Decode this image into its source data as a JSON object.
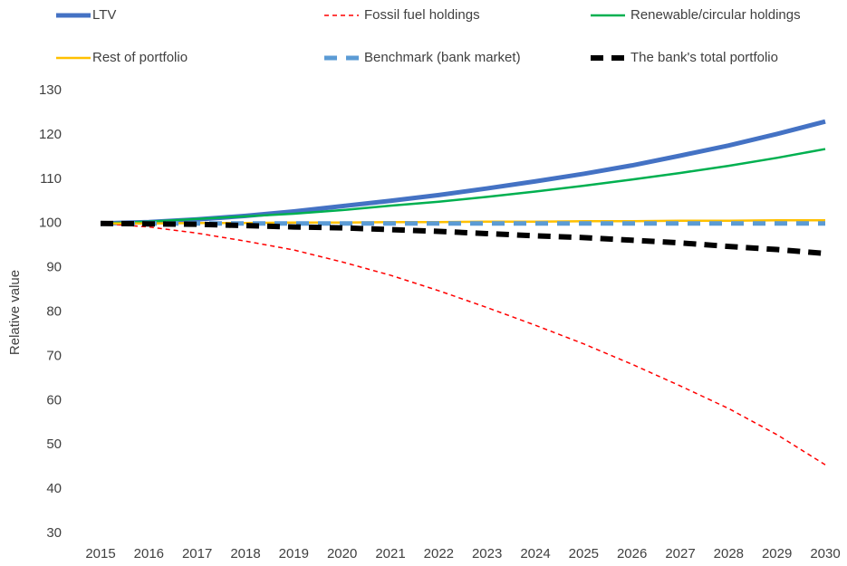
{
  "chart_data": {
    "type": "line",
    "y_label": "Relative value",
    "categories": [
      "2015",
      "2016",
      "2017",
      "2018",
      "2019",
      "2020",
      "2021",
      "2022",
      "2023",
      "2024",
      "2025",
      "2026",
      "2027",
      "2028",
      "2029",
      "2030"
    ],
    "ylim": [
      30,
      130
    ],
    "yticks": [
      30,
      40,
      50,
      60,
      70,
      80,
      90,
      100,
      110,
      120,
      130
    ],
    "grid": false,
    "legend": "top",
    "series": [
      {
        "name": "LTV",
        "color": "#4472c4",
        "width": 5,
        "dash": "none",
        "values": [
          100,
          100.3,
          100.9,
          101.7,
          102.7,
          103.9,
          105.1,
          106.4,
          107.9,
          109.5,
          111.2,
          113.1,
          115.3,
          117.6,
          120.2,
          123
        ]
      },
      {
        "name": "Fossil fuel holdings",
        "color": "#ff0000",
        "width": 1.5,
        "dash": "5 4",
        "values": [
          100,
          99.2,
          97.8,
          96,
          94,
          91.3,
          88.3,
          84.8,
          81,
          77,
          72.8,
          68.2,
          63.3,
          58.2,
          52.3,
          45.5
        ]
      },
      {
        "name": "Renewable/circular holdings",
        "color": "#00b050",
        "width": 2.5,
        "dash": "none",
        "values": [
          100,
          100.4,
          101,
          101.6,
          102.2,
          103,
          104,
          104.9,
          106,
          107.2,
          108.5,
          109.9,
          111.4,
          113,
          114.8,
          116.8
        ]
      },
      {
        "name": "Rest of portfolio",
        "color": "#ffc000",
        "width": 2.5,
        "dash": "none",
        "values": [
          100,
          100,
          100.1,
          100.1,
          100.2,
          100.2,
          100.3,
          100.3,
          100.4,
          100.4,
          100.5,
          100.5,
          100.6,
          100.6,
          100.7,
          100.7
        ]
      },
      {
        "name": "Benchmark (bank market)",
        "color": "#5b9bd5",
        "width": 5,
        "dash": "14 10",
        "values": [
          100,
          100,
          100,
          100,
          100,
          100,
          100,
          100,
          100,
          100,
          100,
          100,
          100,
          100,
          100,
          100
        ]
      },
      {
        "name": "The bank's total portfolio",
        "color": "#000000",
        "width": 6,
        "dash": "14 9",
        "values": [
          100,
          99.9,
          99.8,
          99.5,
          99.2,
          99,
          98.6,
          98.2,
          97.7,
          97.2,
          96.8,
          96.2,
          95.6,
          94.8,
          94.1,
          93.2
        ]
      }
    ]
  }
}
